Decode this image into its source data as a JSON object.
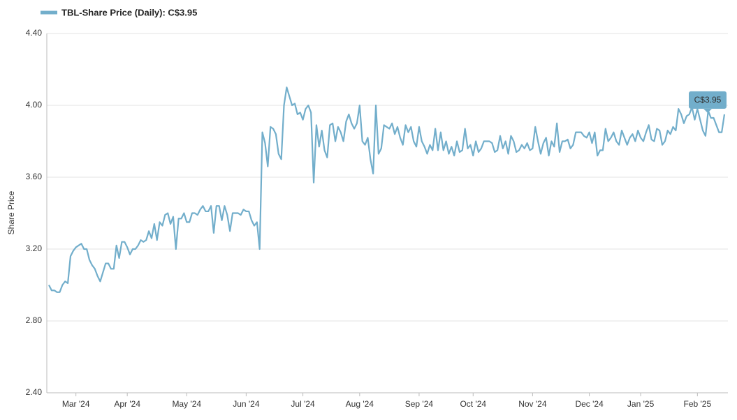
{
  "chart_data": {
    "type": "line",
    "ylabel": "Share Price",
    "annotation": "C$3.95",
    "ylim": [
      2.4,
      4.4
    ],
    "yticks": [
      {
        "value": 2.4,
        "label": "2.40"
      },
      {
        "value": 2.8,
        "label": "2.80"
      },
      {
        "value": 3.2,
        "label": "3.20"
      },
      {
        "value": 3.6,
        "label": "3.60"
      },
      {
        "value": 4.0,
        "label": "4.00"
      },
      {
        "value": 4.4,
        "label": "4.40"
      }
    ],
    "grid": true,
    "legend": "top-left",
    "categories": [
      null,
      null,
      null,
      null,
      null,
      null,
      null,
      null,
      null,
      null,
      "Mar '24",
      null,
      null,
      null,
      null,
      null,
      null,
      null,
      null,
      null,
      null,
      null,
      null,
      null,
      null,
      null,
      null,
      null,
      null,
      "Apr '24",
      null,
      null,
      null,
      null,
      null,
      null,
      null,
      null,
      null,
      null,
      null,
      null,
      null,
      null,
      null,
      null,
      null,
      null,
      null,
      null,
      null,
      "May '24",
      null,
      null,
      null,
      null,
      null,
      null,
      null,
      null,
      null,
      null,
      null,
      null,
      null,
      null,
      null,
      null,
      null,
      null,
      null,
      null,
      null,
      "Jun '24",
      null,
      null,
      null,
      null,
      null,
      null,
      null,
      null,
      null,
      null,
      null,
      null,
      null,
      null,
      null,
      null,
      null,
      null,
      null,
      null,
      "Jul '24",
      null,
      null,
      null,
      null,
      null,
      null,
      null,
      null,
      null,
      null,
      null,
      null,
      null,
      null,
      null,
      null,
      null,
      null,
      null,
      null,
      "Aug '24",
      null,
      null,
      null,
      null,
      null,
      null,
      null,
      null,
      null,
      null,
      null,
      null,
      null,
      null,
      null,
      null,
      null,
      null,
      null,
      null,
      null,
      "Sep '24",
      null,
      null,
      null,
      null,
      null,
      null,
      null,
      null,
      null,
      null,
      null,
      null,
      null,
      null,
      null,
      null,
      null,
      null,
      null,
      "Oct '24",
      null,
      null,
      null,
      null,
      null,
      null,
      null,
      null,
      null,
      null,
      null,
      null,
      null,
      null,
      null,
      null,
      null,
      null,
      null,
      null,
      null,
      "Nov '24",
      null,
      null,
      null,
      null,
      null,
      null,
      null,
      null,
      null,
      null,
      null,
      null,
      null,
      null,
      null,
      null,
      null,
      null,
      null,
      null,
      "Dec '24",
      null,
      null,
      null,
      null,
      null,
      null,
      null,
      null,
      null,
      null,
      null,
      null,
      null,
      null,
      null,
      null,
      null,
      null,
      "Jan '25",
      null,
      null,
      null,
      null,
      null,
      null,
      null,
      null,
      null,
      null,
      null,
      null,
      null,
      null,
      null,
      null,
      null,
      null,
      null,
      null,
      "Feb '25",
      null,
      null,
      null,
      null,
      null,
      null,
      null,
      null,
      null,
      null
    ],
    "series": [
      {
        "name": "TBL-Share Price (Daily): C$3.95",
        "color": "#72aecb",
        "values": [
          3.0,
          2.97,
          2.97,
          2.96,
          2.96,
          3.0,
          3.02,
          3.01,
          3.16,
          3.19,
          3.21,
          3.22,
          3.23,
          3.2,
          3.2,
          3.14,
          3.11,
          3.09,
          3.05,
          3.02,
          3.07,
          3.12,
          3.12,
          3.09,
          3.09,
          3.22,
          3.15,
          3.24,
          3.24,
          3.21,
          3.17,
          3.2,
          3.2,
          3.22,
          3.25,
          3.24,
          3.25,
          3.3,
          3.26,
          3.34,
          3.25,
          3.35,
          3.33,
          3.39,
          3.4,
          3.34,
          3.38,
          3.2,
          3.37,
          3.37,
          3.4,
          3.35,
          3.35,
          3.4,
          3.4,
          3.39,
          3.42,
          3.44,
          3.41,
          3.41,
          3.44,
          3.29,
          3.44,
          3.44,
          3.36,
          3.44,
          3.39,
          3.3,
          3.4,
          3.4,
          3.4,
          3.39,
          3.42,
          3.41,
          3.41,
          3.36,
          3.33,
          3.35,
          3.2,
          3.85,
          3.79,
          3.66,
          3.88,
          3.87,
          3.84,
          3.73,
          3.7,
          4.0,
          4.1,
          4.05,
          4.0,
          4.01,
          3.95,
          3.96,
          3.92,
          3.98,
          4.0,
          3.96,
          3.57,
          3.89,
          3.77,
          3.86,
          3.75,
          3.71,
          3.89,
          3.9,
          3.8,
          3.88,
          3.85,
          3.8,
          3.91,
          3.95,
          3.9,
          3.87,
          3.9,
          4.0,
          3.8,
          3.78,
          3.82,
          3.7,
          3.62,
          4.0,
          3.73,
          3.76,
          3.89,
          3.88,
          3.87,
          3.9,
          3.84,
          3.88,
          3.82,
          3.78,
          3.89,
          3.85,
          3.88,
          3.8,
          3.77,
          3.88,
          3.8,
          3.77,
          3.73,
          3.78,
          3.75,
          3.87,
          3.75,
          3.85,
          3.75,
          3.8,
          3.73,
          3.77,
          3.72,
          3.8,
          3.74,
          3.75,
          3.87,
          3.76,
          3.78,
          3.72,
          3.8,
          3.74,
          3.76,
          3.8,
          3.8,
          3.8,
          3.79,
          3.74,
          3.75,
          3.83,
          3.76,
          3.8,
          3.73,
          3.83,
          3.8,
          3.74,
          3.75,
          3.78,
          3.76,
          3.79,
          3.75,
          3.76,
          3.88,
          3.8,
          3.73,
          3.79,
          3.82,
          3.72,
          3.8,
          3.77,
          3.9,
          3.74,
          3.8,
          3.8,
          3.81,
          3.76,
          3.78,
          3.85,
          3.85,
          3.85,
          3.83,
          3.82,
          3.85,
          3.79,
          3.85,
          3.72,
          3.75,
          3.75,
          3.87,
          3.8,
          3.82,
          3.85,
          3.8,
          3.78,
          3.86,
          3.82,
          3.78,
          3.82,
          3.84,
          3.8,
          3.86,
          3.82,
          3.8,
          3.85,
          3.89,
          3.81,
          3.8,
          3.87,
          3.86,
          3.78,
          3.8,
          3.86,
          3.84,
          3.88,
          3.86,
          3.98,
          3.95,
          3.9,
          3.94,
          3.95,
          3.99,
          3.92,
          3.98,
          3.92,
          3.86,
          3.83,
          3.97,
          3.93,
          3.93,
          3.89,
          3.85,
          3.85,
          3.95
        ]
      }
    ]
  }
}
